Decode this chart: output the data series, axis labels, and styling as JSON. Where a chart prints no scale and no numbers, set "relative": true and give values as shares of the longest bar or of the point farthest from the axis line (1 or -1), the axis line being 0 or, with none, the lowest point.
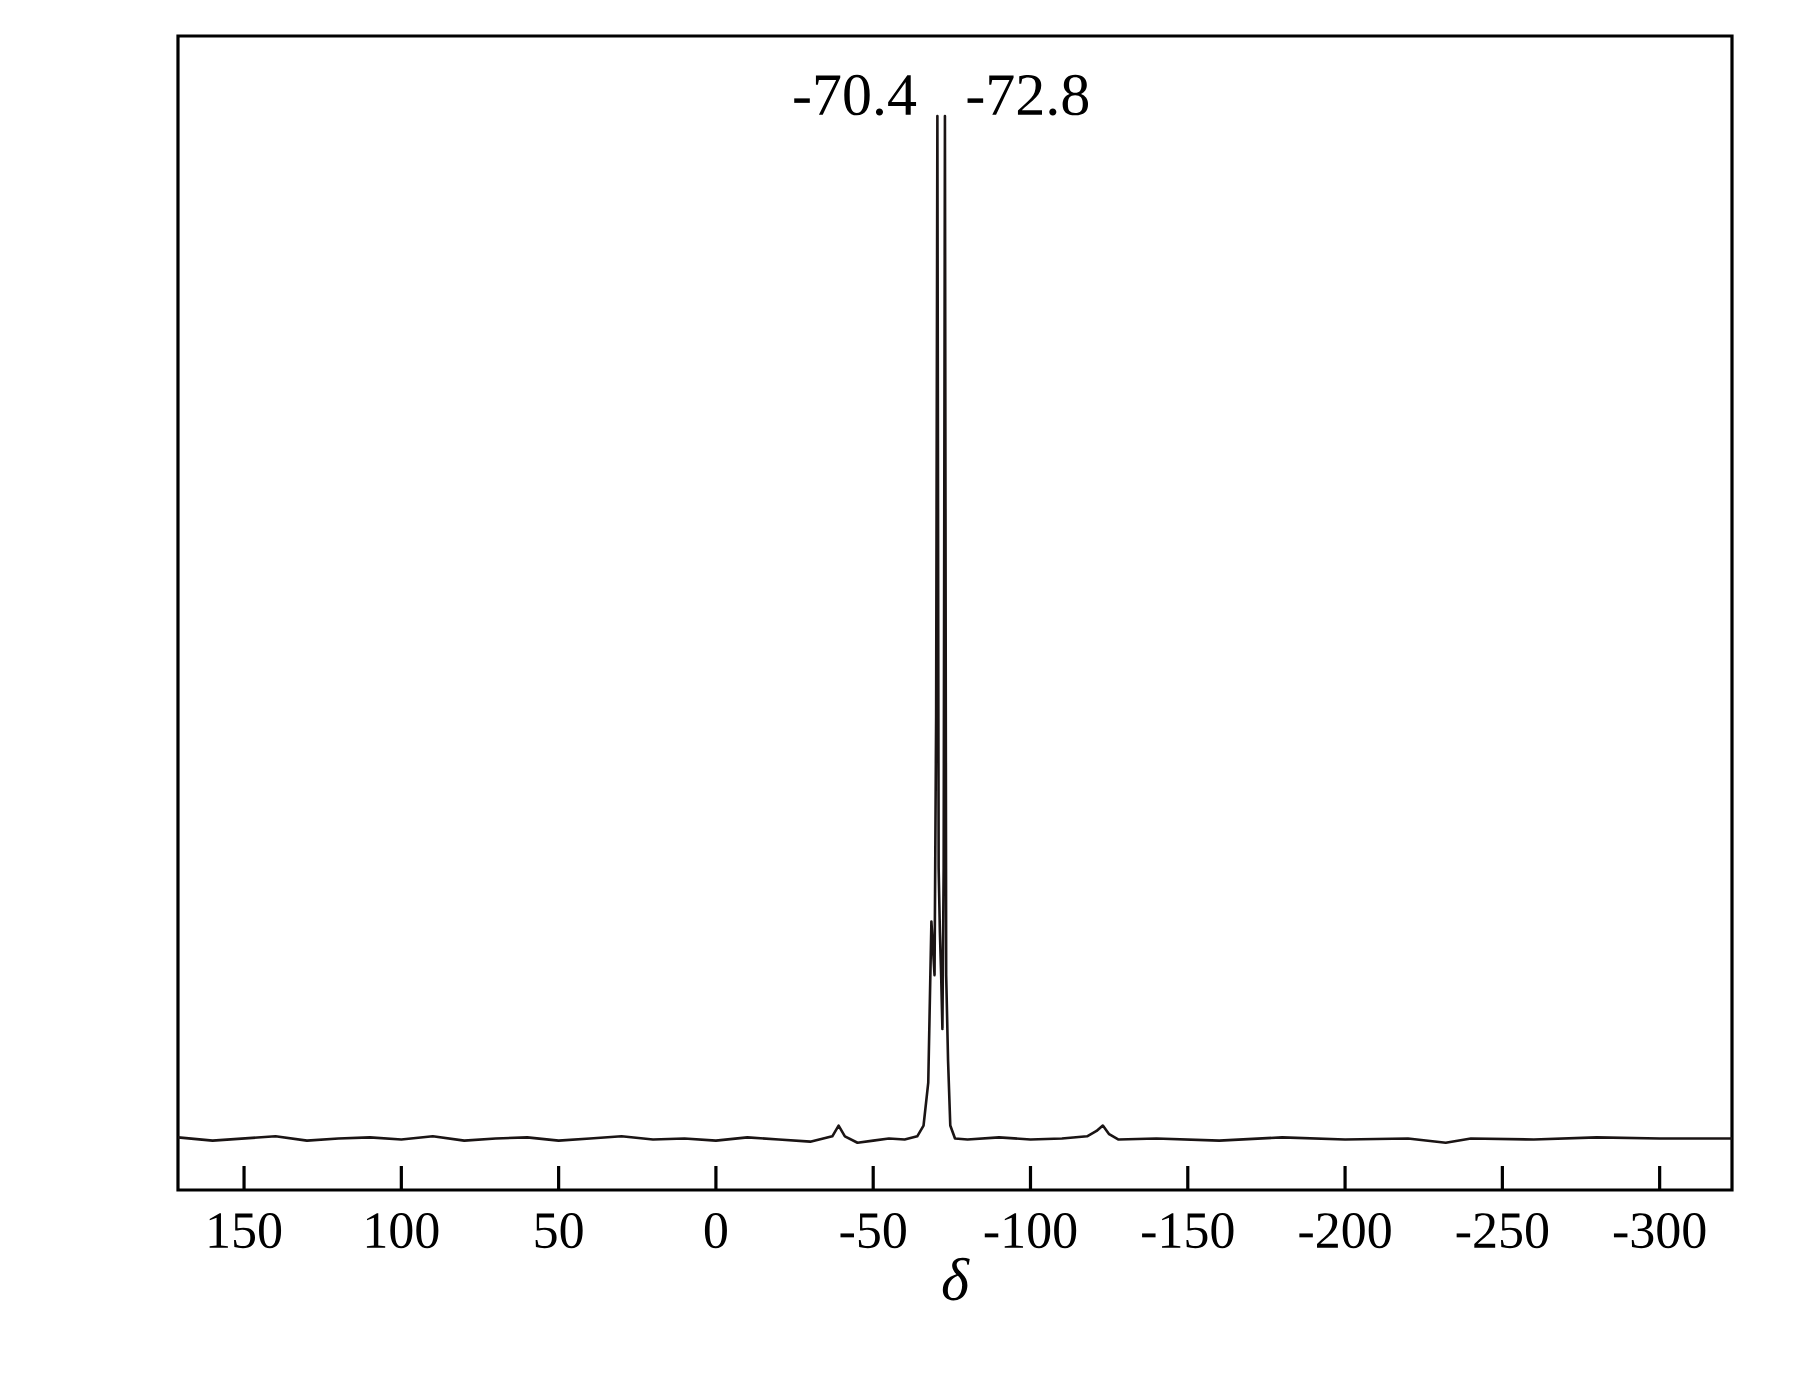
{
  "chart_data": {
    "type": "line",
    "relative": true,
    "xlabel": "δ",
    "color": "#1a1414",
    "xlim": [
      171,
      -323
    ],
    "xticks": [
      150,
      100,
      50,
      0,
      -50,
      -100,
      -150,
      -200,
      -250,
      -300
    ],
    "annotations": [
      {
        "text": "-70.4",
        "x": -70.4,
        "y": 1
      },
      {
        "text": "-72.8",
        "x": -72.8,
        "y": 1
      }
    ],
    "x": [
      171,
      160,
      150,
      140,
      130,
      120,
      110,
      100,
      90,
      80,
      70,
      60,
      50,
      40,
      30,
      20,
      10,
      0,
      -10,
      -20,
      -30,
      -37,
      -39,
      -41,
      -45,
      -50,
      -55,
      -60,
      -64,
      -66,
      -67.5,
      -68.5,
      -69.5,
      -70.0,
      -70.4,
      -70.8,
      -71.2,
      -71.6,
      -72.0,
      -72.4,
      -72.8,
      -73.2,
      -73.8,
      -74.5,
      -76,
      -80,
      -90,
      -100,
      -110,
      -118,
      -121,
      -123,
      -125,
      -128,
      -140,
      -160,
      -180,
      -200,
      -220,
      -232,
      -240,
      -260,
      -280,
      -300,
      -323
    ],
    "values": [
      0.049,
      0.046,
      0.048,
      0.05,
      0.046,
      0.048,
      0.049,
      0.047,
      0.05,
      0.046,
      0.048,
      0.049,
      0.046,
      0.048,
      0.05,
      0.047,
      0.048,
      0.046,
      0.049,
      0.047,
      0.045,
      0.05,
      0.06,
      0.05,
      0.044,
      0.046,
      0.048,
      0.047,
      0.05,
      0.06,
      0.1,
      0.25,
      0.2,
      0.44,
      1,
      0.3,
      0.24,
      0.2,
      0.15,
      0.3,
      1,
      0.2,
      0.12,
      0.06,
      0.048,
      0.047,
      0.049,
      0.047,
      0.048,
      0.05,
      0.055,
      0.06,
      0.052,
      0.047,
      0.048,
      0.046,
      0.049,
      0.047,
      0.048,
      0.044,
      0.048,
      0.047,
      0.049,
      0.048,
      0.048
    ]
  }
}
